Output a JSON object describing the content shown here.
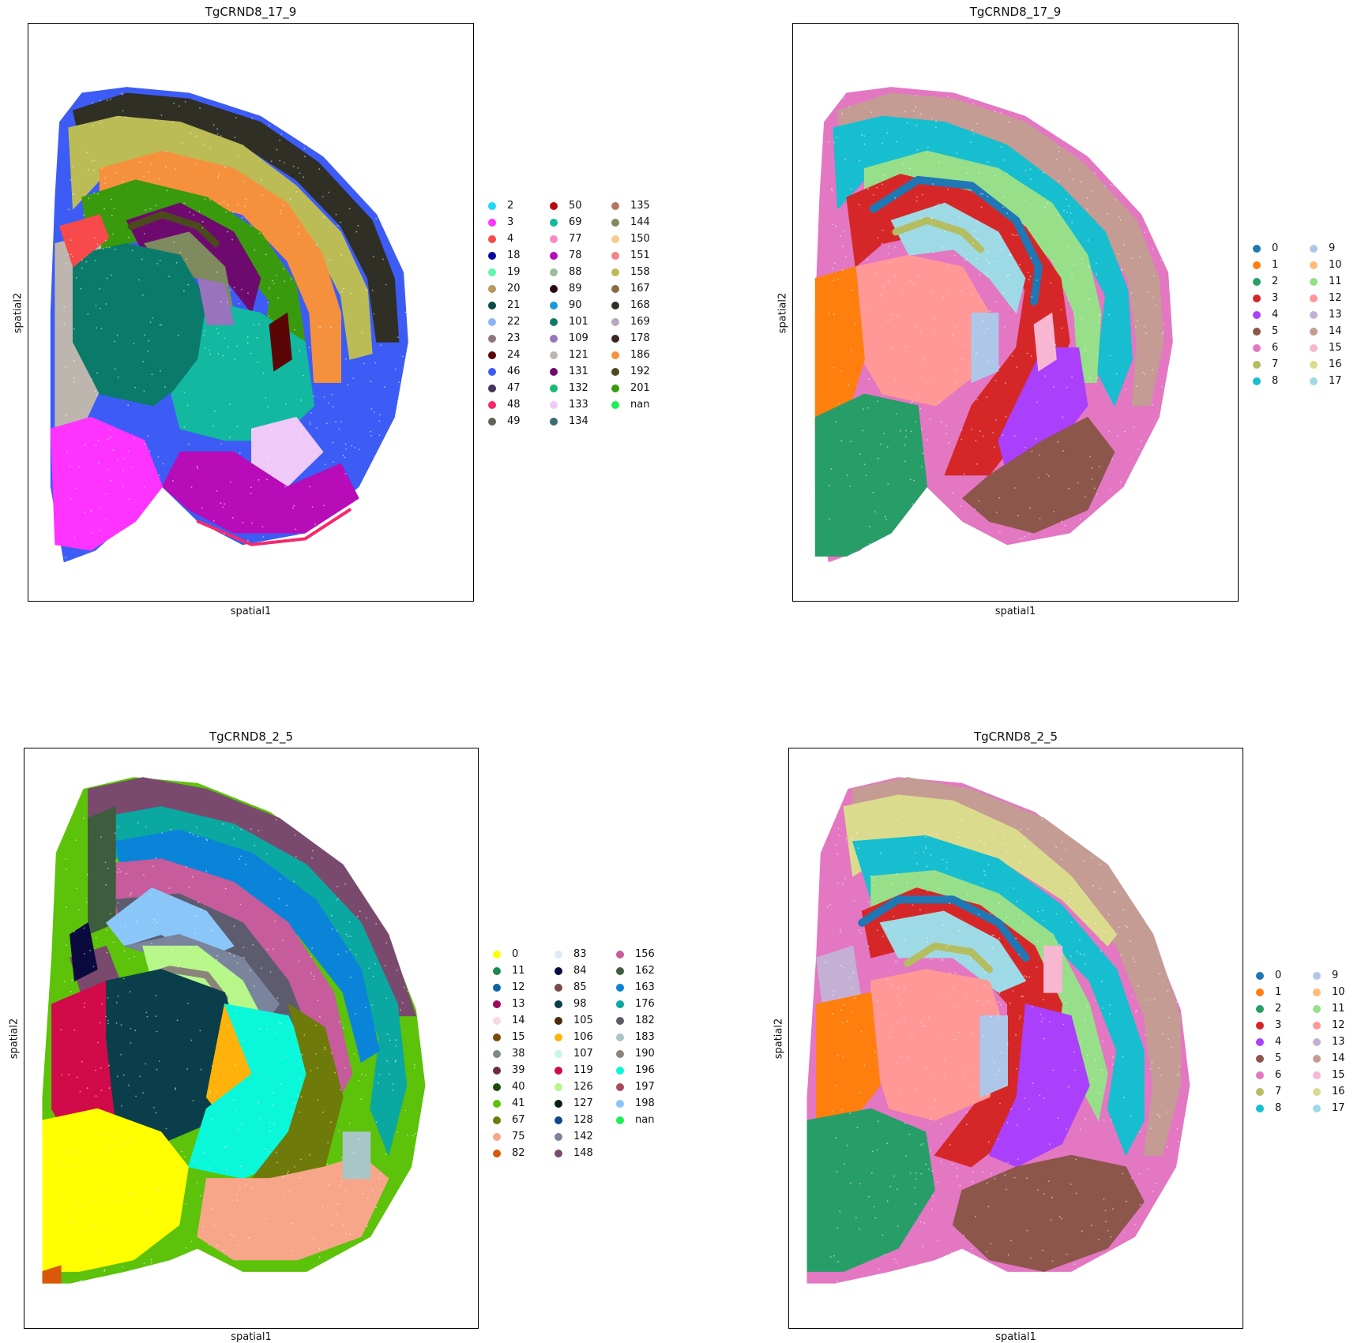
{
  "chart_data": [
    {
      "type": "scatter",
      "title": "TgCRND8_17_9",
      "xlabel": "spatial1",
      "ylabel": "spatial2",
      "legend_position": "right",
      "legend_columns": 3,
      "legend": [
        {
          "label": "2",
          "color": "#1ed9f5"
        },
        {
          "label": "3",
          "color": "#ff33ff"
        },
        {
          "label": "4",
          "color": "#f84a4a"
        },
        {
          "label": "18",
          "color": "#0a0a9c"
        },
        {
          "label": "19",
          "color": "#5df5b0"
        },
        {
          "label": "20",
          "color": "#b7965f"
        },
        {
          "label": "21",
          "color": "#0a4a48"
        },
        {
          "label": "22",
          "color": "#8eb4f5"
        },
        {
          "label": "23",
          "color": "#8c7780"
        },
        {
          "label": "24",
          "color": "#5a0606"
        },
        {
          "label": "46",
          "color": "#3d5cf5"
        },
        {
          "label": "47",
          "color": "#43345a"
        },
        {
          "label": "48",
          "color": "#f5296e"
        },
        {
          "label": "49",
          "color": "#5e6459"
        },
        {
          "label": "50",
          "color": "#b80c0c"
        },
        {
          "label": "69",
          "color": "#12b8a0"
        },
        {
          "label": "77",
          "color": "#f58cc4"
        },
        {
          "label": "78",
          "color": "#b70cb7"
        },
        {
          "label": "88",
          "color": "#9cbc9a"
        },
        {
          "label": "89",
          "color": "#2a0512"
        },
        {
          "label": "90",
          "color": "#1d98d6"
        },
        {
          "label": "101",
          "color": "#0a7a6a"
        },
        {
          "label": "109",
          "color": "#9a73bd"
        },
        {
          "label": "121",
          "color": "#bdb6ae"
        },
        {
          "label": "131",
          "color": "#6e0a6e"
        },
        {
          "label": "132",
          "color": "#1ab874"
        },
        {
          "label": "133",
          "color": "#efc9f7"
        },
        {
          "label": "134",
          "color": "#3d6a75"
        },
        {
          "label": "135",
          "color": "#b3775e"
        },
        {
          "label": "144",
          "color": "#7f8a5e"
        },
        {
          "label": "150",
          "color": "#f7cb91"
        },
        {
          "label": "151",
          "color": "#f28487"
        },
        {
          "label": "158",
          "color": "#bcbc57"
        },
        {
          "label": "167",
          "color": "#8a6d3e"
        },
        {
          "label": "168",
          "color": "#2f2f26"
        },
        {
          "label": "169",
          "color": "#b7a8c0"
        },
        {
          "label": "178",
          "color": "#3d2622"
        },
        {
          "label": "186",
          "color": "#f5913d"
        },
        {
          "label": "192",
          "color": "#4a4a1e"
        },
        {
          "label": "201",
          "color": "#3a9a0e"
        },
        {
          "label": "nan",
          "color": "#1fef57"
        }
      ]
    },
    {
      "type": "scatter",
      "title": "TgCRND8_17_9",
      "xlabel": "spatial1",
      "ylabel": "spatial2",
      "legend_position": "right",
      "legend_columns": 2,
      "legend": [
        {
          "label": "0",
          "color": "#1f77b4"
        },
        {
          "label": "1",
          "color": "#ff7f0e"
        },
        {
          "label": "2",
          "color": "#279e68"
        },
        {
          "label": "3",
          "color": "#d62728"
        },
        {
          "label": "4",
          "color": "#aa40fc"
        },
        {
          "label": "5",
          "color": "#8c564b"
        },
        {
          "label": "6",
          "color": "#e377c2"
        },
        {
          "label": "7",
          "color": "#b5bd61"
        },
        {
          "label": "8",
          "color": "#17becf"
        },
        {
          "label": "9",
          "color": "#aec7e8"
        },
        {
          "label": "10",
          "color": "#ffbb78"
        },
        {
          "label": "11",
          "color": "#98df8a"
        },
        {
          "label": "12",
          "color": "#ff9896"
        },
        {
          "label": "13",
          "color": "#c5b0d5"
        },
        {
          "label": "14",
          "color": "#c49c94"
        },
        {
          "label": "15",
          "color": "#f7b6d2"
        },
        {
          "label": "16",
          "color": "#dbdb8d"
        },
        {
          "label": "17",
          "color": "#9edae5"
        }
      ]
    },
    {
      "type": "scatter",
      "title": "TgCRND8_2_5",
      "xlabel": "spatial1",
      "ylabel": "spatial2",
      "legend_position": "right",
      "legend_columns": 3,
      "legend": [
        {
          "label": "0",
          "color": "#ffff00"
        },
        {
          "label": "11",
          "color": "#1c8a4c"
        },
        {
          "label": "12",
          "color": "#0a66a8"
        },
        {
          "label": "13",
          "color": "#9c0a5e"
        },
        {
          "label": "14",
          "color": "#f7d9e6"
        },
        {
          "label": "15",
          "color": "#7a4a0a"
        },
        {
          "label": "38",
          "color": "#7a8a84"
        },
        {
          "label": "39",
          "color": "#6e2e3e"
        },
        {
          "label": "40",
          "color": "#1e4a0a"
        },
        {
          "label": "41",
          "color": "#5cc20a"
        },
        {
          "label": "67",
          "color": "#6e7a0a"
        },
        {
          "label": "75",
          "color": "#f7a68a"
        },
        {
          "label": "82",
          "color": "#d9580a"
        },
        {
          "label": "83",
          "color": "#dceaf7"
        },
        {
          "label": "84",
          "color": "#0a0a3e"
        },
        {
          "label": "85",
          "color": "#7a4a4a"
        },
        {
          "label": "98",
          "color": "#0a3e4a"
        },
        {
          "label": "105",
          "color": "#4a2a0a"
        },
        {
          "label": "106",
          "color": "#ffb30a"
        },
        {
          "label": "107",
          "color": "#c6f7e2"
        },
        {
          "label": "119",
          "color": "#d10a4a"
        },
        {
          "label": "126",
          "color": "#b7f78a"
        },
        {
          "label": "127",
          "color": "#0a1e0a"
        },
        {
          "label": "128",
          "color": "#0a4a8a"
        },
        {
          "label": "142",
          "color": "#7a849c"
        },
        {
          "label": "148",
          "color": "#7a4a6e"
        },
        {
          "label": "156",
          "color": "#c65c9c"
        },
        {
          "label": "162",
          "color": "#3e5c3e"
        },
        {
          "label": "163",
          "color": "#0a84d9"
        },
        {
          "label": "176",
          "color": "#0aa8a0"
        },
        {
          "label": "182",
          "color": "#5c5c6e"
        },
        {
          "label": "183",
          "color": "#a8c6c6"
        },
        {
          "label": "190",
          "color": "#8a847a"
        },
        {
          "label": "196",
          "color": "#0af7d9"
        },
        {
          "label": "197",
          "color": "#a84a5c"
        },
        {
          "label": "198",
          "color": "#8ac6f7"
        },
        {
          "label": "nan",
          "color": "#1fef57"
        }
      ]
    },
    {
      "type": "scatter",
      "title": "TgCRND8_2_5",
      "xlabel": "spatial1",
      "ylabel": "spatial2",
      "legend_position": "right",
      "legend_columns": 2,
      "legend": [
        {
          "label": "0",
          "color": "#1f77b4"
        },
        {
          "label": "1",
          "color": "#ff7f0e"
        },
        {
          "label": "2",
          "color": "#279e68"
        },
        {
          "label": "3",
          "color": "#d62728"
        },
        {
          "label": "4",
          "color": "#aa40fc"
        },
        {
          "label": "5",
          "color": "#8c564b"
        },
        {
          "label": "6",
          "color": "#e377c2"
        },
        {
          "label": "7",
          "color": "#b5bd61"
        },
        {
          "label": "8",
          "color": "#17becf"
        },
        {
          "label": "9",
          "color": "#aec7e8"
        },
        {
          "label": "10",
          "color": "#ffbb78"
        },
        {
          "label": "11",
          "color": "#98df8a"
        },
        {
          "label": "12",
          "color": "#ff9896"
        },
        {
          "label": "13",
          "color": "#c5b0d5"
        },
        {
          "label": "14",
          "color": "#c49c94"
        },
        {
          "label": "15",
          "color": "#f7b6d2"
        },
        {
          "label": "16",
          "color": "#dbdb8d"
        },
        {
          "label": "17",
          "color": "#9edae5"
        }
      ]
    }
  ]
}
